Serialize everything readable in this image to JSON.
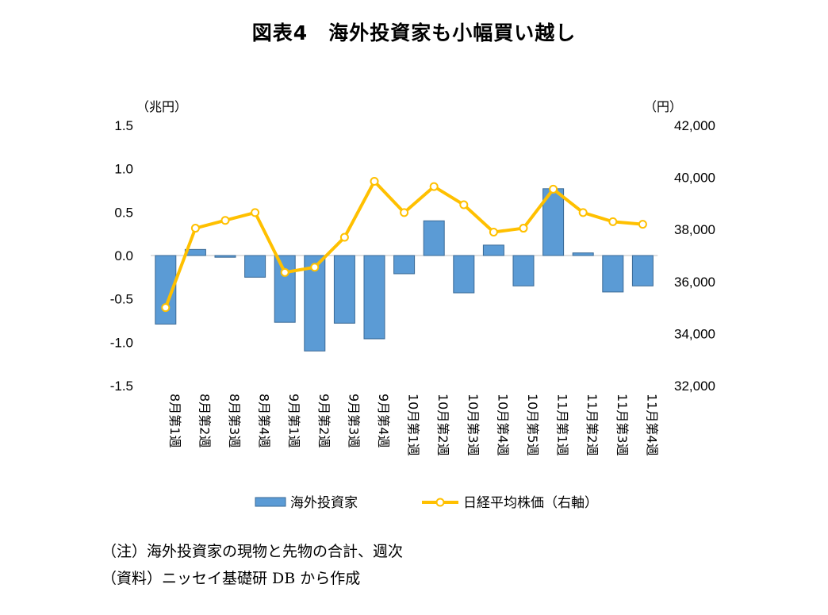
{
  "chart_data": {
    "type": "bar+line",
    "title": "図表4　海外投資家も小幅買い越し",
    "categories": [
      "8月第1週",
      "8月第2週",
      "8月第3週",
      "8月第4週",
      "9月第1週",
      "9月第2週",
      "9月第3週",
      "9月第4週",
      "10月第1週",
      "10月第2週",
      "10月第3週",
      "10月第4週",
      "10月第5週",
      "11月第1週",
      "11月第2週",
      "11月第3週",
      "11月第4週"
    ],
    "y_left": {
      "unit": "（兆円）",
      "ylim": [
        -1.5,
        1.5
      ],
      "ticks": [
        "1.5",
        "1.0",
        "0.5",
        "0.0",
        "-0.5",
        "-1.0",
        "-1.5"
      ]
    },
    "y_right": {
      "unit": "（円）",
      "ylim": [
        32000,
        42000
      ],
      "ticks": [
        "42,000",
        "40,000",
        "38,000",
        "36,000",
        "34,000",
        "32,000"
      ]
    },
    "series": [
      {
        "name": "海外投資家",
        "type": "bar",
        "axis": "left",
        "color": "#5b9bd5",
        "values": [
          -0.79,
          0.07,
          -0.02,
          -0.25,
          -0.77,
          -1.1,
          -0.78,
          -0.96,
          -0.21,
          0.4,
          -0.43,
          0.12,
          -0.35,
          0.77,
          0.03,
          -0.42,
          -0.35
        ]
      },
      {
        "name": "日経平均株価（右軸）",
        "type": "line",
        "axis": "right",
        "color": "#ffc000",
        "values": [
          35000,
          38050,
          38350,
          38650,
          36350,
          36550,
          37700,
          39850,
          38650,
          39650,
          38950,
          37900,
          38050,
          39550,
          38650,
          38300,
          38200
        ]
      }
    ],
    "grid": false,
    "legend": "bottom-center"
  },
  "notes": [
    "（注）海外投資家の現物と先物の合計、週次",
    "（資料）ニッセイ基礎研 DB から作成"
  ]
}
